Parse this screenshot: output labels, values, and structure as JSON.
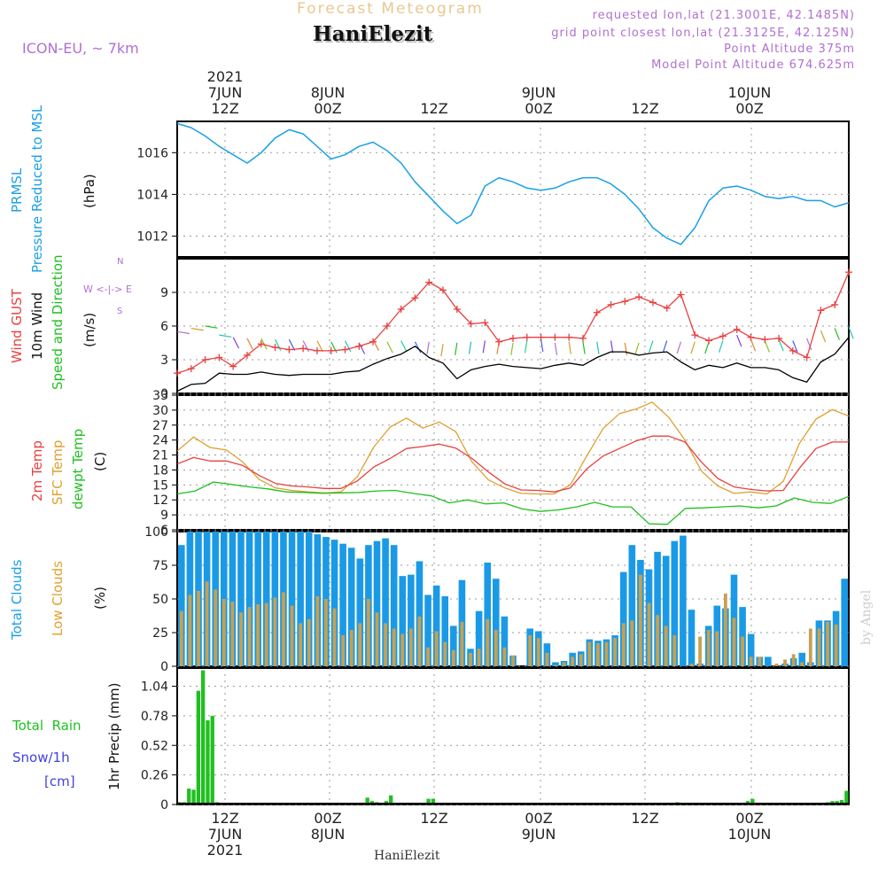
{
  "header": {
    "title": "Forecast Meteogram",
    "station": "HaniElezit",
    "model": "ICON-EU, ~ 7km",
    "requested": "requested lon,lat (21.3001E, 42.1485N)",
    "gridpoint": "grid point closest lon,lat (21.3125E, 42.125N)",
    "point_alt": "Point Altitude 375m",
    "model_alt": "Model Point Altitude 674.625m"
  },
  "time_axis": {
    "top": [
      {
        "line1": "2021",
        "line2": "7JUN",
        "line3": "12Z"
      },
      {
        "line1": "",
        "line2": "8JUN",
        "line3": "00Z"
      },
      {
        "line1": "",
        "line2": "",
        "line3": "12Z"
      },
      {
        "line1": "",
        "line2": "9JUN",
        "line3": "00Z"
      },
      {
        "line1": "",
        "line2": "",
        "line3": "12Z"
      },
      {
        "line1": "",
        "line2": "10JUN",
        "line3": "00Z"
      }
    ],
    "bottom": [
      {
        "line1": "12Z",
        "line2": "7JUN",
        "line3": "2021"
      },
      {
        "line1": "00Z",
        "line2": "8JUN",
        "line3": ""
      },
      {
        "line1": "12Z",
        "line2": "",
        "line3": ""
      },
      {
        "line1": "00Z",
        "line2": "9JUN",
        "line3": ""
      },
      {
        "line1": "12Z",
        "line2": "",
        "line3": ""
      },
      {
        "line1": "00Z",
        "line2": "10JUN",
        "line3": ""
      }
    ]
  },
  "labels": {
    "prmsl": "PRMSL",
    "prmsl_sub": "Pressure Reduced to MSL",
    "hpa": "(hPa)",
    "gust": "Wind GUST",
    "wind10": "10m Wind",
    "wind_dir": "Speed and Direction",
    "ms": "(m/s)",
    "compass_n": "N",
    "compass_we": "W <-|-> E",
    "compass_s": "S",
    "t2m": "2m Temp",
    "tsfc": "SFC Temp",
    "dewpt": "dewpt Temp",
    "celsius": "(C)",
    "total_clouds": "Total Clouds",
    "low_clouds": "Low Clouds",
    "percent": "(%)",
    "total_rain": "Total",
    "rain": "Rain",
    "snow": "Snow/1h",
    "snow_unit": "[cm]",
    "precip": "1hr Precip (mm)",
    "credit": "HaniElezit",
    "watermark": "by Angel"
  },
  "colors": {
    "pressure": "#1aa0e6",
    "gust": "#e84040",
    "wind10": "#000000",
    "t2m": "#e84040",
    "tsfc": "#e0a030",
    "dewpt": "#20c020",
    "total_clouds": "#1a9ae6",
    "low_clouds": "#c8a050",
    "rain": "#20c020",
    "snow": "#4040e0",
    "purple": "#b070d0"
  },
  "chart_data": [
    {
      "type": "line",
      "title": "PRMSL Pressure Reduced to MSL",
      "ylabel": "(hPa)",
      "ylim": [
        1011.0,
        1017.5
      ],
      "yticks": [
        1012,
        1014,
        1016
      ],
      "x_hours": [
        0,
        2,
        4,
        6,
        8,
        10,
        12,
        14,
        16,
        18,
        20,
        22,
        24,
        26,
        28,
        30,
        32,
        34,
        36,
        38,
        40,
        42,
        44,
        46,
        48,
        50,
        52,
        54,
        56,
        58,
        60,
        62,
        64,
        66,
        68,
        70,
        72,
        74,
        76,
        78,
        80,
        82,
        84,
        86,
        88,
        90,
        92,
        94,
        96
      ],
      "series": [
        {
          "name": "PRMSL",
          "values": [
            1017.4,
            1017.2,
            1016.8,
            1016.3,
            1015.9,
            1015.5,
            1016.0,
            1016.7,
            1017.1,
            1016.9,
            1016.3,
            1015.7,
            1015.9,
            1016.3,
            1016.5,
            1016.1,
            1015.5,
            1014.6,
            1013.9,
            1013.2,
            1012.6,
            1013.0,
            1014.4,
            1014.8,
            1014.6,
            1014.3,
            1014.2,
            1014.3,
            1014.6,
            1014.8,
            1014.8,
            1014.5,
            1014.0,
            1013.3,
            1012.4,
            1011.9,
            1011.6,
            1012.4,
            1013.7,
            1014.3,
            1014.4,
            1014.2,
            1013.9,
            1013.8,
            1013.9,
            1013.7,
            1013.7,
            1013.4,
            1013.6
          ]
        }
      ]
    },
    {
      "type": "line",
      "title": "Wind GUST / 10m Wind Speed and Direction",
      "ylabel": "(m/s)",
      "ylim": [
        0,
        12
      ],
      "yticks": [
        0,
        3,
        6,
        9
      ],
      "x_hours": [
        0,
        2,
        4,
        6,
        8,
        10,
        12,
        14,
        16,
        18,
        20,
        22,
        24,
        26,
        28,
        30,
        32,
        34,
        36,
        38,
        40,
        42,
        44,
        46,
        48,
        50,
        52,
        54,
        56,
        58,
        60,
        62,
        64,
        66,
        68,
        70,
        72,
        74,
        76,
        78,
        80,
        82,
        84,
        86,
        88,
        90,
        92,
        94,
        96
      ],
      "series": [
        {
          "name": "Wind GUST",
          "values": [
            1.8,
            2.2,
            3.0,
            3.2,
            2.4,
            3.4,
            4.4,
            4.1,
            3.9,
            4.0,
            3.8,
            3.8,
            3.9,
            4.2,
            4.6,
            6.0,
            7.5,
            8.5,
            9.9,
            9.2,
            7.5,
            6.2,
            6.3,
            4.6,
            4.9,
            5.0,
            5.0,
            5.0,
            5.0,
            4.9,
            7.2,
            7.9,
            8.2,
            8.6,
            8.1,
            7.6,
            8.8,
            5.2,
            4.7,
            5.1,
            5.7,
            5.0,
            4.8,
            4.9,
            3.8,
            3.2,
            7.4,
            7.9,
            10.8
          ]
        },
        {
          "name": "10m Wind",
          "values": [
            0.2,
            0.8,
            0.9,
            1.8,
            1.7,
            1.7,
            1.9,
            1.7,
            1.6,
            1.7,
            1.7,
            1.7,
            1.9,
            2.0,
            2.6,
            3.1,
            3.5,
            4.2,
            3.2,
            2.7,
            1.3,
            2.1,
            2.4,
            2.6,
            2.4,
            2.3,
            2.2,
            2.5,
            2.7,
            2.5,
            3.2,
            3.7,
            3.7,
            3.4,
            3.6,
            3.7,
            2.8,
            2.1,
            2.5,
            2.3,
            2.7,
            2.3,
            2.3,
            2.1,
            1.4,
            1.0,
            2.8,
            3.5,
            5.0
          ]
        }
      ],
      "arrow_speeds": [
        5.5,
        5.8,
        6.0,
        5.2,
        5.0,
        4.9,
        4.9,
        4.8,
        4.8,
        4.7,
        4.7,
        4.6,
        4.7,
        4.5,
        4.8,
        4.6,
        4.7,
        4.6,
        4.6,
        4.4,
        4.5,
        4.6,
        4.7,
        4.6,
        4.5,
        4.7,
        4.8,
        4.5,
        4.6,
        4.6,
        4.6,
        4.7,
        4.5,
        4.5,
        4.7,
        4.7,
        4.6,
        4.6,
        4.6,
        4.7,
        5.2,
        4.8,
        4.7,
        4.8,
        4.7,
        4.9,
        5.6,
        5.8,
        5.9
      ]
    },
    {
      "type": "line",
      "title": "2m Temp / SFC Temp / dewpt Temp",
      "ylabel": "(C)",
      "ylim": [
        6,
        33
      ],
      "yticks": [
        6,
        9,
        12,
        15,
        18,
        21,
        24,
        27,
        30,
        33
      ],
      "x_hours": [
        0,
        2,
        4,
        6,
        8,
        10,
        12,
        14,
        16,
        18,
        20,
        22,
        24,
        26,
        28,
        30,
        32,
        34,
        36,
        38,
        40,
        42,
        44,
        46,
        48,
        50,
        52,
        54,
        56,
        58,
        60,
        62,
        64,
        66,
        68,
        70,
        72,
        74,
        76,
        78,
        80,
        82,
        84,
        86,
        88,
        90,
        92,
        94,
        96
      ],
      "series": [
        {
          "name": "2m Temp",
          "values": [
            19.2,
            20.5,
            19.8,
            19.8,
            18.9,
            16.9,
            15.3,
            14.8,
            14.6,
            14.3,
            14.3,
            15.8,
            18.6,
            20.3,
            22.3,
            22.7,
            23.2,
            22.4,
            20.3,
            17.6,
            15.2,
            14.0,
            13.9,
            13.6,
            14.4,
            18.2,
            20.8,
            22.3,
            23.8,
            24.8,
            24.8,
            23.6,
            19.6,
            16.3,
            14.6,
            14.1,
            13.8,
            13.9,
            18.4,
            22.3,
            23.6,
            23.6
          ]
        },
        {
          "name": "SFC Temp",
          "values": [
            21.8,
            24.6,
            22.5,
            22.0,
            19.6,
            16.1,
            14.4,
            13.9,
            13.6,
            13.4,
            13.6,
            16.7,
            22.6,
            26.6,
            28.4,
            26.4,
            27.6,
            25.7,
            19.6,
            16.0,
            14.4,
            13.3,
            13.2,
            13.2,
            15.0,
            20.8,
            26.3,
            29.3,
            30.2,
            31.6,
            28.6,
            24.0,
            17.8,
            14.8,
            13.3,
            13.6,
            13.2,
            15.7,
            23.4,
            28.2,
            30.1,
            28.8
          ]
        },
        {
          "name": "dewpt Temp",
          "values": [
            13.2,
            13.8,
            15.6,
            15.1,
            14.6,
            14.2,
            13.6,
            13.5,
            13.3,
            13.4,
            13.5,
            13.8,
            13.9,
            13.3,
            12.8,
            11.4,
            12.0,
            11.2,
            11.4,
            10.2,
            9.7,
            10.0,
            10.6,
            11.5,
            10.6,
            10.6,
            7.2,
            7.1,
            10.3,
            10.4,
            10.6,
            10.8,
            10.4,
            10.8,
            12.4,
            11.5,
            11.3,
            12.7
          ]
        }
      ],
      "dewpt_x_hours": [
        0,
        2,
        4,
        6,
        8,
        10,
        12,
        14,
        16,
        18,
        20,
        22,
        24,
        26,
        28,
        30,
        32,
        34,
        36,
        38,
        40,
        42,
        44,
        46,
        48,
        50,
        52,
        54,
        56,
        58,
        60,
        62,
        64,
        66,
        68,
        70,
        72,
        74
      ],
      "temp_x_hours": [
        0,
        2,
        4,
        6,
        8,
        10,
        12,
        14,
        16,
        18,
        20,
        22,
        24,
        26,
        28,
        30,
        32,
        34,
        36,
        38,
        40,
        42,
        44,
        46,
        48,
        50,
        52,
        54,
        56,
        58,
        60,
        62,
        64,
        66,
        68,
        70,
        72,
        74,
        76,
        78,
        80,
        82
      ]
    },
    {
      "type": "bar",
      "title": "Total Clouds / Low Clouds",
      "ylabel": "(%)",
      "ylim": [
        0,
        100
      ],
      "yticks": [
        0,
        25,
        50,
        75,
        100
      ],
      "series": [
        {
          "name": "Total Clouds",
          "values": [
            90,
            100,
            100,
            100,
            100,
            100,
            100,
            100,
            100,
            100,
            100,
            100,
            100,
            100,
            100,
            100,
            98,
            96,
            94,
            91,
            88,
            80,
            90,
            93,
            95,
            90,
            67,
            68,
            78,
            53,
            60,
            52,
            30,
            64,
            13,
            41,
            77,
            65,
            37,
            8,
            0,
            28,
            26,
            17,
            3,
            4,
            10,
            11,
            20,
            19,
            20,
            23,
            70,
            90,
            79,
            72,
            85,
            82,
            93,
            97,
            42,
            2,
            30,
            45,
            43,
            68,
            44,
            24,
            7,
            7,
            0,
            2,
            6,
            10,
            3,
            34,
            34,
            41,
            65
          ]
        },
        {
          "name": "Low Clouds",
          "values": [
            41,
            53,
            56,
            63,
            57,
            50,
            48,
            40,
            44,
            46,
            47,
            51,
            55,
            45,
            32,
            35,
            52,
            50,
            43,
            23,
            27,
            32,
            50,
            40,
            32,
            28,
            24,
            28,
            37,
            14,
            26,
            18,
            12,
            33,
            10,
            13,
            35,
            27,
            14,
            8,
            0,
            23,
            21,
            10,
            1,
            3,
            7,
            9,
            18,
            17,
            18,
            21,
            32,
            34,
            68,
            47,
            38,
            30,
            23,
            0,
            2,
            22,
            27,
            26,
            54,
            36,
            22,
            7,
            7,
            0,
            2,
            5,
            9,
            3,
            28,
            28,
            33,
            31
          ]
        }
      ]
    },
    {
      "type": "bar",
      "title": "1hr Precip",
      "ylabel": "1hr Precip (mm)",
      "ylim": [
        0,
        1.2
      ],
      "yticks": [
        0,
        0.26,
        0.52,
        0.78,
        1.04
      ],
      "series": [
        {
          "name": "Total Rain",
          "values": [
            0.02,
            0.02,
            0.14,
            0.13,
            1.0,
            1.18,
            0.74,
            0.78,
            0.02,
            0,
            0,
            0,
            0,
            0,
            0,
            0,
            0,
            0,
            0,
            0,
            0,
            0,
            0,
            0,
            0,
            0,
            0,
            0,
            0,
            0,
            0,
            0,
            0,
            0,
            0,
            0,
            0,
            0,
            0,
            0,
            0.06,
            0.03,
            0.02,
            0,
            0.03,
            0.08,
            0,
            0,
            0,
            0,
            0,
            0,
            0,
            0.05,
            0.05,
            0,
            0,
            0,
            0,
            0,
            0,
            0,
            0,
            0,
            0,
            0,
            0,
            0,
            0,
            0,
            0,
            0,
            0,
            0,
            0,
            0,
            0,
            0,
            0,
            0,
            0,
            0,
            0,
            0,
            0,
            0,
            0,
            0,
            0,
            0,
            0,
            0,
            0,
            0,
            0,
            0,
            0,
            0,
            0,
            0,
            0,
            0,
            0,
            0,
            0,
            0,
            0.02,
            0,
            0,
            0,
            0,
            0,
            0,
            0,
            0,
            0,
            0,
            0,
            0,
            0,
            0.01,
            0.03,
            0.05,
            0,
            0,
            0,
            0,
            0,
            0,
            0,
            0,
            0,
            0,
            0,
            0,
            0,
            0,
            0,
            0.02,
            0.03,
            0.03,
            0.04,
            0.12
          ]
        },
        {
          "name": "Snow/1h",
          "values": []
        }
      ]
    }
  ]
}
